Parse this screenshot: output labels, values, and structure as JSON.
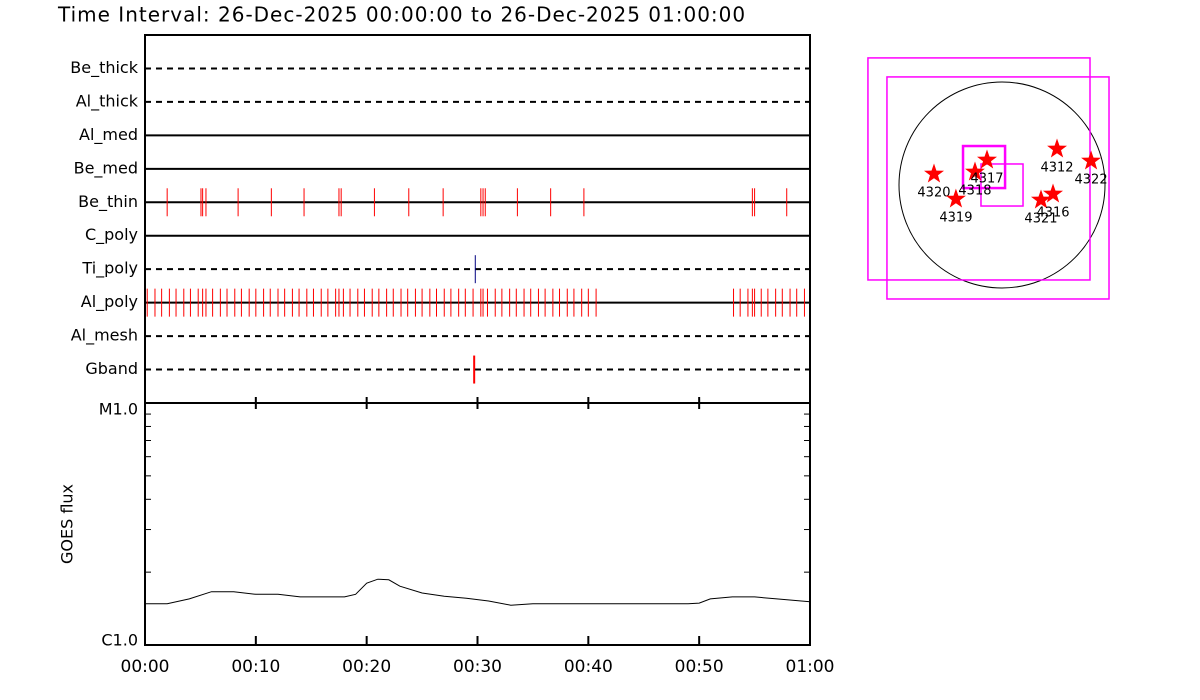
{
  "chart_data": [
    {
      "type": "timeline",
      "title": "Time Interval: 26-Dec-2025 00:00:00 to 26-Dec-2025 01:00:00",
      "xlim": [
        0,
        60
      ],
      "xticks": [
        0,
        10,
        20,
        30,
        40,
        50,
        60
      ],
      "rows": [
        {
          "name": "Be_thick",
          "dashed": true,
          "color": "#ff0000",
          "events": []
        },
        {
          "name": "Al_thick",
          "dashed": true,
          "color": "#ff0000",
          "events": []
        },
        {
          "name": "Al_med",
          "dashed": false,
          "color": "#ff0000",
          "events": []
        },
        {
          "name": "Be_med",
          "dashed": false,
          "color": "#ff0000",
          "events": []
        },
        {
          "name": "Be_thin",
          "dashed": false,
          "color": "#ff0000",
          "events": [
            2.0,
            5.05,
            5.2,
            5.5,
            8.4,
            11.4,
            14.35,
            17.5,
            17.7,
            20.7,
            23.8,
            26.9,
            30.3,
            30.5,
            30.7,
            33.6,
            36.6,
            39.6,
            54.8,
            55.0,
            57.9
          ]
        },
        {
          "name": "C_poly",
          "dashed": false,
          "color": "#ff0000",
          "events": []
        },
        {
          "name": "Ti_poly",
          "dashed": true,
          "color": "#000080",
          "events": [
            29.8
          ]
        },
        {
          "name": "Al_poly",
          "dashed": false,
          "color": "#ff0000",
          "events": [
            0.2,
            0.9,
            1.5,
            2.2,
            2.8,
            3.5,
            4.1,
            4.8,
            5.2,
            5.5,
            6.1,
            6.8,
            7.4,
            8.1,
            8.7,
            9.4,
            10.0,
            10.7,
            11.3,
            12.0,
            12.6,
            13.3,
            13.9,
            14.6,
            15.2,
            15.9,
            16.5,
            17.2,
            17.5,
            17.9,
            18.5,
            19.2,
            19.8,
            20.5,
            21.1,
            21.8,
            22.4,
            23.1,
            23.7,
            24.4,
            25.0,
            25.7,
            26.3,
            27.0,
            27.6,
            28.3,
            28.9,
            29.6,
            30.3,
            30.5,
            30.9,
            31.6,
            32.2,
            32.9,
            33.5,
            34.2,
            34.8,
            35.5,
            36.1,
            36.8,
            37.4,
            38.1,
            38.7,
            39.4,
            40.0,
            40.7,
            53.1,
            53.7,
            54.4,
            54.8,
            55.0,
            55.6,
            56.2,
            56.9,
            57.5,
            58.2,
            58.8,
            59.5
          ]
        },
        {
          "name": "Al_mesh",
          "dashed": true,
          "color": "#ff0000",
          "events": []
        },
        {
          "name": "Gband",
          "dashed": true,
          "color": "#ff0000",
          "events": [
            29.7
          ]
        }
      ]
    },
    {
      "type": "line",
      "y_label": "GOES flux",
      "log_scale": true,
      "color": "#000000",
      "x": [
        0,
        2,
        4,
        6,
        8,
        10,
        12,
        14,
        16,
        18,
        19,
        20,
        21,
        22,
        23,
        25,
        27,
        29,
        31,
        33,
        35,
        37,
        40,
        45,
        49,
        50,
        51,
        53,
        55,
        57,
        60
      ],
      "values": [
        1.48e-06,
        1.48e-06,
        1.55e-06,
        1.66e-06,
        1.66e-06,
        1.62e-06,
        1.62e-06,
        1.58e-06,
        1.58e-06,
        1.58e-06,
        1.62e-06,
        1.8e-06,
        1.87e-06,
        1.86e-06,
        1.75e-06,
        1.64e-06,
        1.59e-06,
        1.56e-06,
        1.52e-06,
        1.46e-06,
        1.48e-06,
        1.48e-06,
        1.48e-06,
        1.48e-06,
        1.48e-06,
        1.49e-06,
        1.55e-06,
        1.58e-06,
        1.58e-06,
        1.55e-06,
        1.51e-06
      ],
      "xlim": [
        0,
        60
      ],
      "xticks": [
        {
          "value": 0,
          "label": "00:00"
        },
        {
          "value": 10,
          "label": "00:10"
        },
        {
          "value": 20,
          "label": "00:20"
        },
        {
          "value": 30,
          "label": "00:30"
        },
        {
          "value": 40,
          "label": "00:40"
        },
        {
          "value": 50,
          "label": "00:50"
        },
        {
          "value": 60,
          "label": "01:00"
        }
      ],
      "ylim": [
        1e-06,
        1e-05
      ],
      "yticks": [
        {
          "value": 1e-06,
          "label": "C1.0"
        },
        {
          "value": 1e-05,
          "label": "M1.0"
        }
      ],
      "yminorticks": [
        2e-06,
        3e-06,
        4e-06,
        5e-06,
        6e-06,
        7e-06,
        8e-06,
        9e-06
      ]
    },
    {
      "type": "map",
      "disk_radius": 975,
      "box_color": "#ff00ff",
      "point_color": "#ff0000",
      "boxes": [
        {
          "x": -218,
          "y": 152,
          "size": 2102
        },
        {
          "x": -38,
          "y": -28,
          "size": 2102
        },
        {
          "x": -170,
          "y": 170,
          "size": 398
        },
        {
          "x": 0,
          "y": 0,
          "size": 398
        }
      ],
      "points": [
        {
          "label": "4320",
          "x": -644,
          "y": 104
        },
        {
          "label": "4318",
          "x": -256,
          "y": 123
        },
        {
          "label": "4317",
          "x": -142,
          "y": 237
        },
        {
          "label": "4319",
          "x": -436,
          "y": -133
        },
        {
          "label": "4312",
          "x": 521,
          "y": 341
        },
        {
          "label": "4322",
          "x": 843,
          "y": 227
        },
        {
          "label": "4321",
          "x": 369,
          "y": -142
        },
        {
          "label": "4316",
          "x": 483,
          "y": -85
        }
      ]
    }
  ]
}
